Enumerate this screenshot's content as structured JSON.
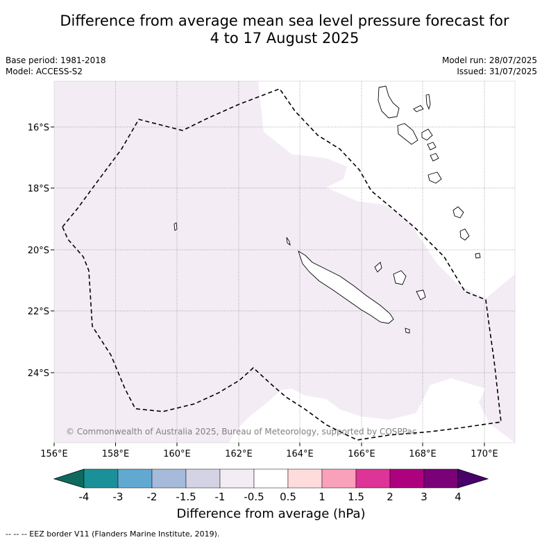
{
  "title_line1": "Difference from average mean sea level pressure forecast for",
  "title_line2": "4 to 17 August 2025",
  "base_period": "Base period: 1981-2018",
  "model": "Model: ACCESS-S2",
  "model_run": "Model run: 28/07/2025",
  "issued": "Issued: 31/07/2025",
  "lon_ticks": [
    "156°E",
    "158°E",
    "160°E",
    "162°E",
    "164°E",
    "166°E",
    "168°E",
    "170°E"
  ],
  "lat_ticks": [
    "16°S",
    "18°S",
    "20°S",
    "22°S",
    "24°S"
  ],
  "copyright": "© Commonwealth of Australia 2025, Bureau of Meteorology, supported by COSPPac",
  "colorbar": {
    "title": "Difference from average (hPa)",
    "ticks": [
      "-4",
      "-3",
      "-2",
      "-1.5",
      "-1",
      "-0.5",
      "0.5",
      "1",
      "1.5",
      "2",
      "3",
      "4"
    ],
    "colors": [
      "#0e6a5e",
      "#1a9199",
      "#62a9d1",
      "#a6badb",
      "#d4d3e6",
      "#f3ecf5",
      "#ffffff",
      "#ffdcdc",
      "#f9a0ba",
      "#dd3497",
      "#ae017e",
      "#7a0177",
      "#49006a"
    ]
  },
  "map_colors": {
    "shade_fill": "#f3ecf5"
  },
  "footer": "--  --  -- EEZ border V11 (Flanders Marine Institute, 2019).",
  "map_data": {
    "lon_range": [
      156,
      171
    ],
    "lat_range": [
      -14.5,
      -26.5
    ],
    "shading": "-1 to -0.5 hPa over most of the domain"
  }
}
